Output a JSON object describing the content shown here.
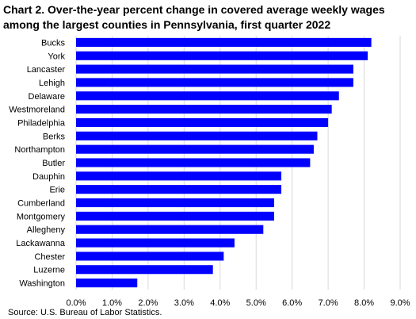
{
  "chart_data": {
    "type": "bar",
    "orientation": "horizontal",
    "title": "Chart 2.  Over-the-year percent change in covered average weekly wages among the largest counties in Pennsylvania, first quarter 2022",
    "xlabel": "",
    "ylabel": "",
    "categories": [
      "Bucks",
      "York",
      "Lancaster",
      "Lehigh",
      "Delaware",
      "Westmoreland",
      "Philadelphia",
      "Berks",
      "Northampton",
      "Butler",
      "Dauphin",
      "Erie",
      "Cumberland",
      "Montgomery",
      "Allegheny",
      "Lackawanna",
      "Chester",
      "Luzerne",
      "Washington"
    ],
    "values": [
      8.2,
      8.1,
      7.7,
      7.7,
      7.3,
      7.1,
      7.0,
      6.7,
      6.6,
      6.5,
      5.7,
      5.7,
      5.5,
      5.5,
      5.2,
      4.4,
      4.1,
      3.8,
      1.7
    ],
    "xlim": [
      0,
      9
    ],
    "tick_values": [
      0,
      1,
      2,
      3,
      4,
      5,
      6,
      7,
      8,
      9
    ],
    "tick_labels": [
      "0.0%",
      "1.0%",
      "2.0%",
      "3.0%",
      "4.0%",
      "5.0%",
      "6.0%",
      "7.0%",
      "8.0%",
      "9.0%"
    ],
    "bar_color": "#0000ff",
    "grid": "vertical",
    "legend": "none"
  },
  "source": "Source: U.S. Bureau of Labor Statistics."
}
